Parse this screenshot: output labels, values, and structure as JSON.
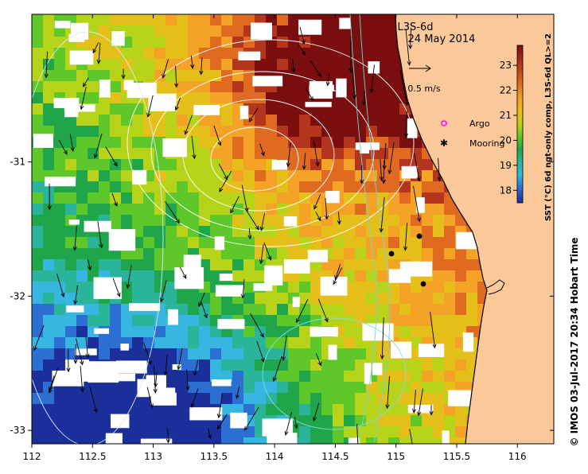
{
  "map": {
    "product": "L3S-6d",
    "date": "24 May 2014",
    "lon_range": [
      112,
      116.3
    ],
    "lat_range": [
      -33.1,
      -29.9
    ],
    "lon_ticks": [
      "112",
      "112.5",
      "113",
      "113.5",
      "114",
      "114.5",
      "115",
      "115.5",
      "116"
    ],
    "lat_ticks": [
      "-31",
      "-32",
      "-33"
    ]
  },
  "legend": {
    "scale_speed": "0.5 m/s",
    "argo_label": "Argo",
    "mooring_label": "Mooring",
    "argo_color": "#ff00ff",
    "mooring_color": "#000000"
  },
  "colorbar": {
    "ticks": [
      "23",
      "22",
      "21",
      "20",
      "19",
      "18"
    ],
    "label": "SST (°C) 6d ngt-only comp, L3S-6d QL>=2",
    "colors": [
      "#7a0d0d",
      "#b3351e",
      "#e06a1f",
      "#f4a326",
      "#e6c01a",
      "#b8d41a",
      "#5ec82a",
      "#1fa64a",
      "#2ab59a",
      "#36b6e0",
      "#2a6fd1",
      "#1b2f9a"
    ]
  },
  "credit": "©  IMOS 03-Jul-2017 20:34 Hobart Time",
  "land_color": "#fcc99b"
}
